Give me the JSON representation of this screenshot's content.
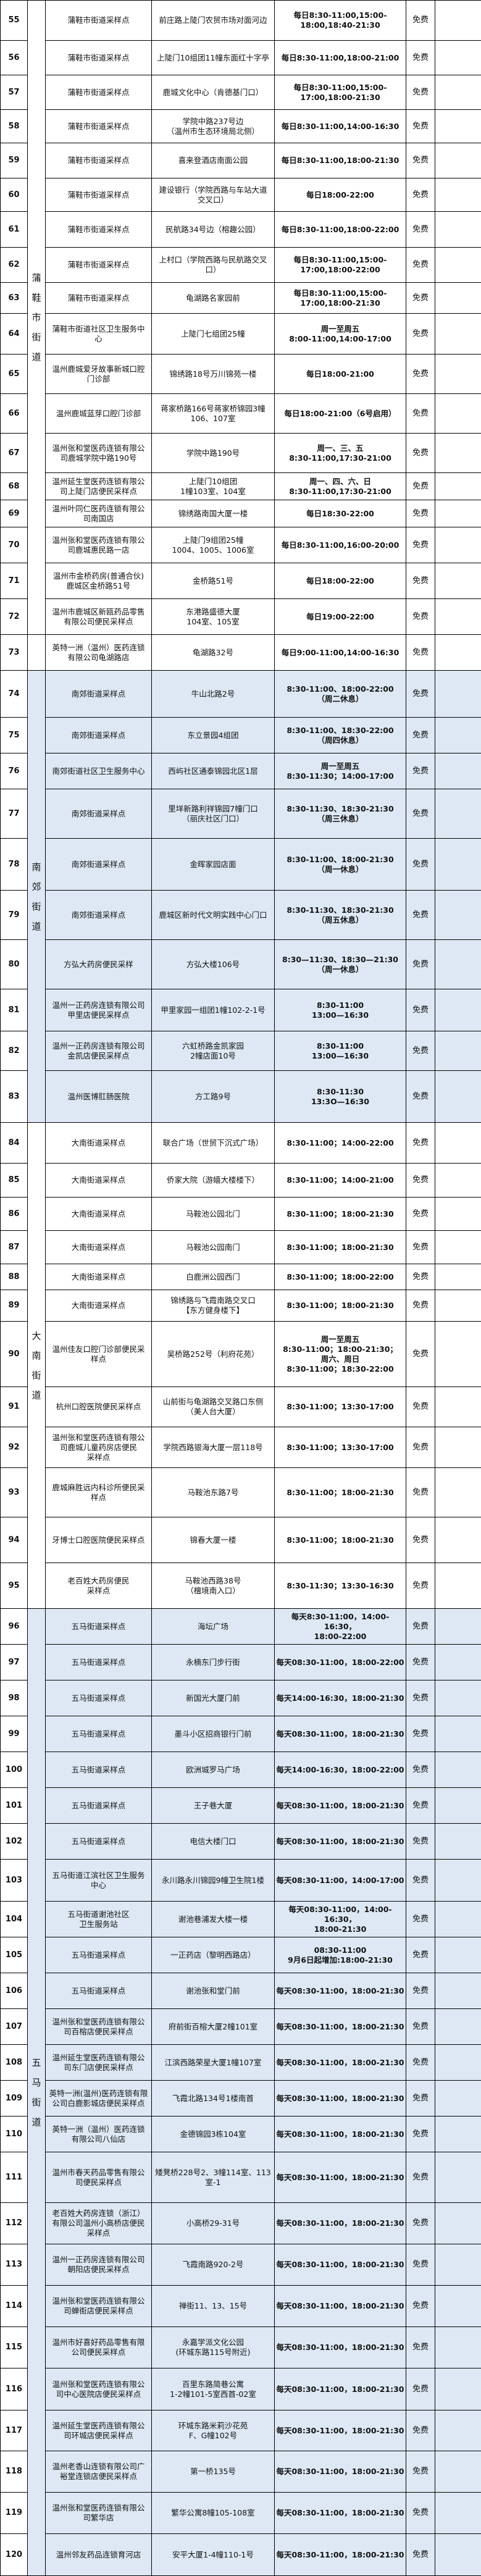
{
  "colors": {
    "shaded_group": "#dde8f4",
    "border": "#000000"
  },
  "groups": [
    {
      "label": "蒲鞋市街道",
      "from": 55,
      "to": 72,
      "shaded": false
    },
    {
      "label": "",
      "from": 73,
      "to": 73,
      "shaded": false
    },
    {
      "label": "南郊街道",
      "from": 74,
      "to": 83,
      "shaded": true
    },
    {
      "label": "大南街道",
      "from": 84,
      "to": 95,
      "shaded": false
    },
    {
      "label": "五马街道",
      "from": 96,
      "to": 120,
      "shaded": true
    }
  ],
  "rows": [
    {
      "no": "55",
      "name": "蒲鞋市街道采样点",
      "address": "前庄路上陡门农贸市场对面河边",
      "time": "每日8:30-11:00,15:00-\n18:00,18:40-21:30",
      "fee": "免费",
      "remark": ""
    },
    {
      "no": "56",
      "name": "蒲鞋市街道采样点",
      "address": "上陡门10组团11幢东面红十字亭",
      "time": "每日8:30-11:00,18:00-21:00",
      "fee": "免费",
      "remark": ""
    },
    {
      "no": "57",
      "name": "蒲鞋市街道采样点",
      "address": "鹿城文化中心（肯德基门口）",
      "time": "每日8:30-11:00,15:00-\n17:00,18:00-21:30",
      "fee": "免费",
      "remark": ""
    },
    {
      "no": "58",
      "name": "蒲鞋市街道采样点",
      "address": "学院中路237号边\n（温州市生态环境局北侧）",
      "time": "每日8:30-11:00,14:00-16:30",
      "fee": "免费",
      "remark": ""
    },
    {
      "no": "59",
      "name": "蒲鞋市街道采样点",
      "address": "喜来登酒店南面公园",
      "time": "每日8:30-11:00,18:00-21:30",
      "fee": "免费",
      "remark": ""
    },
    {
      "no": "60",
      "name": "蒲鞋市街道采样点",
      "address": "建设银行（学院西路与车站大道\n交叉口）",
      "time": "每日18:00-22:00",
      "fee": "免费",
      "remark": ""
    },
    {
      "no": "61",
      "name": "蒲鞋市街道采样点",
      "address": "民航路34号边（榕趣公园）",
      "time": "每日8:30-11:00,18:00-22:00",
      "fee": "免费",
      "remark": ""
    },
    {
      "no": "62",
      "name": "蒲鞋市街道采样点",
      "address": "上村口（学院西路与民航路交叉\n口）",
      "time": "每日8:30-11:00,15:00-\n17:00,18:00-22:00",
      "fee": "免费",
      "remark": ""
    },
    {
      "no": "63",
      "name": "蒲鞋市街道采样点",
      "address": "龟湖路名家园前",
      "time": "每日8:30-11:00,15:00-\n17:00,18:00-21:30",
      "fee": "免费",
      "remark": ""
    },
    {
      "no": "64",
      "name": "蒲鞋市街道社区卫生服务中\n心",
      "address": "上陡门七组团25幢",
      "time": "周一至周五\n8:00-11:00,14:00-17:00",
      "fee": "免费",
      "remark": ""
    },
    {
      "no": "65",
      "name": "温州鹿城爱牙故事新城口腔\n门诊部",
      "address": "锦绣路18号万川锦苑一楼",
      "time": "每日18:00-21:00",
      "fee": "免费",
      "remark": ""
    },
    {
      "no": "66",
      "name": "温州鹿城蓝芽口腔门诊部",
      "address": "蒋家桥路166号蒋家桥锦园3幢\n106、107室",
      "time": "每日18:00-21:00（6号启用）",
      "fee": "免费",
      "remark": ""
    },
    {
      "no": "67",
      "name": "温州张和堂医药连锁有限公\n司鹿城学院中路190号",
      "address": "学院中路190号",
      "time": "周一、三、五\n8:30-11:00,17:30-21:00",
      "fee": "免费",
      "remark": ""
    },
    {
      "no": "68",
      "name": "温州延生堂医药连锁有限公\n司上陡门店便民采样点",
      "address": "上陡门10组团\n1幢103室、104室",
      "time": "周一、四、六、日\n8:30-11:00,17:30-21:00",
      "fee": "免费",
      "remark": ""
    },
    {
      "no": "69",
      "name": "温州叶同仁医药连锁有限公\n司南国店",
      "address": "锦绣路南国大厦一楼",
      "time": "每日18:30-22:00",
      "fee": "免费",
      "remark": ""
    },
    {
      "no": "70",
      "name": "温州张和堂医药连锁有限公\n司鹿城惠民路一店",
      "address": "上陡门9组团25幢\n1004、1005、1006室",
      "time": "每日8:30-11:00,16:00-20:00",
      "fee": "免费",
      "remark": ""
    },
    {
      "no": "71",
      "name": "温州市金桥药房(普通合伙)\n鹿城区金桥路51号",
      "address": "金桥路51号",
      "time": "每日18:00-22:00",
      "fee": "免费",
      "remark": ""
    },
    {
      "no": "72",
      "name": "温州市鹿城区新瓯药品零售\n有限公司便民采样点",
      "address": "东港路盛德大厦\n104室、105室",
      "time": "每日19:00-22:00",
      "fee": "免费",
      "remark": ""
    },
    {
      "no": "73",
      "name": "英特一洲（温州）医药连锁\n有限公司龟湖路店",
      "address": "龟湖路32号",
      "time": "每日9:00-11:00,14:00-16:30",
      "fee": "免费",
      "remark": ""
    },
    {
      "no": "74",
      "name": "南郊街道采样点",
      "address": "牛山北路2号",
      "time": "8:30-11:00、18:00-22:00\n（周二休息）",
      "fee": "免费",
      "remark": ""
    },
    {
      "no": "75",
      "name": "南郊街道采样点",
      "address": "东立景园4组团",
      "time": "8:30-11:00、18:30-22:00\n（周四休息）",
      "fee": "免费",
      "remark": ""
    },
    {
      "no": "76",
      "name": "南郊街道社区卫生服务中心",
      "address": "西屿社区通泰锦园北区1层",
      "time": "周一至周五\n8:30-11:30；14:00-17:00",
      "fee": "免费",
      "remark": ""
    },
    {
      "no": "77",
      "name": "南郊街道采样点",
      "address": "里垟新路利祥锦园7幢门口\n（丽庆社区门口）",
      "time": "8:30-11:30、18:30-21:30\n（周三休息）",
      "fee": "免费",
      "remark": ""
    },
    {
      "no": "78",
      "name": "南郊街道采样点",
      "address": "金晖家园店面",
      "time": "8:30-11:00、18:00-21:30\n（周一休息）",
      "fee": "免费",
      "remark": ""
    },
    {
      "no": "79",
      "name": "南郊街道采样点",
      "address": "鹿城区新时代文明实践中心门口",
      "time": "8:30-11:30、18:30-21:30\n（周五休息）",
      "fee": "免费",
      "remark": ""
    },
    {
      "no": "80",
      "name": "方弘大药房便民采样",
      "address": "方弘大楼106号",
      "time": "8:30—11:30、18:30—21:30\n（周一休息）",
      "fee": "免费",
      "remark": ""
    },
    {
      "no": "81",
      "name": "温州一正药房连锁有限公司\n甲里店便民采样点",
      "address": "甲里家园一组团1幢102-2-1号",
      "time": "8:30-11:00\n13:00—16:30",
      "fee": "免费",
      "remark": ""
    },
    {
      "no": "82",
      "name": "温州一正药房连锁有限公司\n金凯店便民采样点",
      "address": "六虹桥路金凯家园\n2幢店面10号",
      "time": "8:30-11:00\n13:00—16:30",
      "fee": "免费",
      "remark": ""
    },
    {
      "no": "83",
      "name": "温州医博肛肠医院",
      "address": "方工路9号",
      "time": "8:30-11:30\n13:3O—16:30",
      "fee": "免费",
      "remark": ""
    },
    {
      "no": "84",
      "name": "大南街道采样点",
      "address": "联合广场（世贸下沉式广场）",
      "time": "8:30-11:00；14:00-22:00",
      "fee": "免费",
      "remark": ""
    },
    {
      "no": "85",
      "name": "大南街道采样点",
      "address": "侨家大院（游嬉大楼楼下）",
      "time": "8:30-11:00；14:00-21:00",
      "fee": "免费",
      "remark": ""
    },
    {
      "no": "86",
      "name": "大南街道采样点",
      "address": "马鞍池公园北门",
      "time": "8:30-11:00；18:00-21:30",
      "fee": "免费",
      "remark": ""
    },
    {
      "no": "87",
      "name": "大南街道采样点",
      "address": "马鞍池公园南门",
      "time": "8:30-11:00；18:00-21:30",
      "fee": "免费",
      "remark": ""
    },
    {
      "no": "88",
      "name": "大南街道采样点",
      "address": "白鹿洲公园西门",
      "time": "8:30-11:00；18:00-22:00",
      "fee": "免费",
      "remark": ""
    },
    {
      "no": "89",
      "name": "大南街道采样点",
      "address": "锦绣路与飞霞南路交叉口\n【东方健身楼下】",
      "time": "8:30-11:00；18:00-21:30",
      "fee": "免费",
      "remark": ""
    },
    {
      "no": "90",
      "name": "温州佳友口腔门诊部便民采\n样点",
      "address": "吴桥路252号（利府花苑）",
      "time": "周一至周五\n8:30-11:00；18:00-21:30；\n周六、周日\n8:30-11:00；18:30-22:00",
      "fee": "免费",
      "remark": ""
    },
    {
      "no": "91",
      "name": "杭州口腔医院便民采样点",
      "address": "山前街与龟湖路交叉路口东侧\n（美人台大厦）",
      "time": "8:30-11:00；13:30-17:00",
      "fee": "免费",
      "remark": ""
    },
    {
      "no": "92",
      "name": "温州张和堂医药连锁有限公\n司鹿城儿童药房店便民\n采样点",
      "address": "学院西路银海大厦一层118号",
      "time": "8:30-11:00；13:30-17:00",
      "fee": "免费",
      "remark": ""
    },
    {
      "no": "93",
      "name": "鹿城麻胜远内科诊所便民采\n样点",
      "address": "马鞍池东路7号",
      "time": "8:30-11:00；18:00-21:30",
      "fee": "免费",
      "remark": ""
    },
    {
      "no": "94",
      "name": "牙博士口腔医院便民采样点",
      "address": "锦春大厦一楼",
      "time": "8:30-11:00；18:00-21:30",
      "fee": "免费",
      "remark": ""
    },
    {
      "no": "95",
      "name": "老百姓大药房便民\n采样点",
      "address": "马鞍池西路38号\n（檀境南入口）",
      "time": "8:30-11:30；13:30-16:30",
      "fee": "免费",
      "remark": ""
    },
    {
      "no": "96",
      "name": "五马街道采样点",
      "address": "海坛广场",
      "time": "每天8:30-11:00，14:00-16:30，\n18:00-22:00",
      "fee": "免费",
      "remark": ""
    },
    {
      "no": "97",
      "name": "五马街道采样点",
      "address": "永楠东门步行街",
      "time": "每天08:30-11:00，18:00-22:00",
      "fee": "免费",
      "remark": ""
    },
    {
      "no": "98",
      "name": "五马街道采样点",
      "address": "新国光大厦门前",
      "time": "每天14:00-16:30，18:00-21:30",
      "fee": "免费",
      "remark": ""
    },
    {
      "no": "99",
      "name": "五马街道采样点",
      "address": "墨斗小区招商银行门前",
      "time": "每天08:30-11:00，18:00-21:30",
      "fee": "免费",
      "remark": ""
    },
    {
      "no": "100",
      "name": "五马街道采样点",
      "address": "欧洲城罗马广场",
      "time": "每天14:00-16:30，18:00-22:00",
      "fee": "免费",
      "remark": ""
    },
    {
      "no": "101",
      "name": "五马街道采样点",
      "address": "王子巷大厦",
      "time": "每天08:30-11:00，18:00-21:30",
      "fee": "免费",
      "remark": ""
    },
    {
      "no": "102",
      "name": "五马街道采样点",
      "address": "电信大楼门口",
      "time": "每天08:30-11:00，18:00-21:30",
      "fee": "免费",
      "remark": ""
    },
    {
      "no": "103",
      "name": "五马街道江滨社区卫生服务\n中心",
      "address": "永川路永川锦园9幢卫生院1楼",
      "time": "每天08:30-11:00，14:00-17:00",
      "fee": "免费",
      "remark": ""
    },
    {
      "no": "104",
      "name": "五马街道谢池社区\n卫生服务站",
      "address": "谢池巷浦发大楼一楼",
      "time": "每天08:30-11:00，14:00-16:30，\n18:00-21:30",
      "fee": "免费",
      "remark": ""
    },
    {
      "no": "105",
      "name": "五马街道采样点",
      "address": "一正药店（黎明西路店）",
      "time": "08:30-11:00\n9月6日起增加:18:00-21:30",
      "fee": "免费",
      "remark": ""
    },
    {
      "no": "106",
      "name": "五马街道采样点",
      "address": "谢池张和堂门前",
      "time": "每天08:30-11:00，18:00-21:30",
      "fee": "免费",
      "remark": ""
    },
    {
      "no": "107",
      "name": "温州张和堂医药连锁有限公\n司百榕店便民采样点",
      "address": "府前街百榕大厦2幢101室",
      "time": "每天08:30-11:00，18:00-21:30",
      "fee": "免费",
      "remark": ""
    },
    {
      "no": "108",
      "name": "温州延生堂医药连锁有限公\n司东门店便民采样点",
      "address": "江滨西路荣星大厦1幢107室",
      "time": "每天08:30-11:00，18:00-21:30",
      "fee": "免费",
      "remark": ""
    },
    {
      "no": "109",
      "name": "英特一洲(温州)医药连锁有限\n公司白鹿影城店便民采样点",
      "address": "飞霞北路134号1楼南首",
      "time": "每天08:30-11:00，18:00-21:30",
      "fee": "免费",
      "remark": ""
    },
    {
      "no": "110",
      "name": "英特一洲（温州）医药连锁\n有限公司八仙店",
      "address": "金德锦园3栋104室",
      "time": "每天08:30-11:00，18:00-21:30",
      "fee": "免费",
      "remark": ""
    },
    {
      "no": "111",
      "name": "温州市春天药品零售有限公\n司便民采样点",
      "address": "矮凳桥228号2、3幢114室、113\n室-1",
      "time": "每天08:30-11:00，18:00-21:30",
      "fee": "免费",
      "remark": ""
    },
    {
      "no": "112",
      "name": "老百姓大药房连锁（浙江）\n有限公司温州小高桥店便民\n采样点",
      "address": "小高桥29-31号",
      "time": "每天08:30-11:00，18:00-21:30",
      "fee": "免费",
      "remark": ""
    },
    {
      "no": "113",
      "name": "温州一正药房连锁有限公司\n朝阳店便民采样点",
      "address": "飞霞南路920-2号",
      "time": "每天08:30-11:00，18:00-21:30",
      "fee": "免费",
      "remark": ""
    },
    {
      "no": "114",
      "name": "温州张和堂医药连锁有限公\n司蝉街店便民采样点",
      "address": "禅街11、13、15号",
      "time": "每天08:30-11:00，18:00-21:30",
      "fee": "免费",
      "remark": ""
    },
    {
      "no": "115",
      "name": "温州市好喜好药品零售有限\n公司便民采样点",
      "address": "永嘉学派文化公园\n(环城东路115号附近)",
      "time": "每天08:30-11:00，18:00-21:30",
      "fee": "免费",
      "remark": ""
    },
    {
      "no": "116",
      "name": "温州张和堂医药连锁有限公\n司中心医院店便民采样点",
      "address": "百里东路简巷公寓\n1-2幢101-5室西首-02室",
      "time": "每天08:30-11:00，18:00-21:30",
      "fee": "免费",
      "remark": ""
    },
    {
      "no": "117",
      "name": "温州延生堂医药连锁有限公\n司环城店便民采样点",
      "address": "环城东路米莉沙花苑\nF、G幢102号",
      "time": "每天08:30-11:00，18:00-21:30",
      "fee": "免费",
      "remark": ""
    },
    {
      "no": "118",
      "name": "温州老香山连锁有限公司广\n裕堂连锁店便民采样点",
      "address": "第一桥135号",
      "time": "每天08:30-11:00，18:00-21:30",
      "fee": "免费",
      "remark": ""
    },
    {
      "no": "119",
      "name": "温州张和堂医药连锁有限公\n司繁华店",
      "address": "繁华公寓8幢105-108室",
      "time": "每天08:30-11:00，18:00-21:30",
      "fee": "免费",
      "remark": ""
    },
    {
      "no": "120",
      "name": "温州邻友药品连锁育河店",
      "address": "安平大厦1-4幢110-1号",
      "time": "每天08:30-11:00，18:00-21:30",
      "fee": "免费",
      "remark": ""
    }
  ]
}
